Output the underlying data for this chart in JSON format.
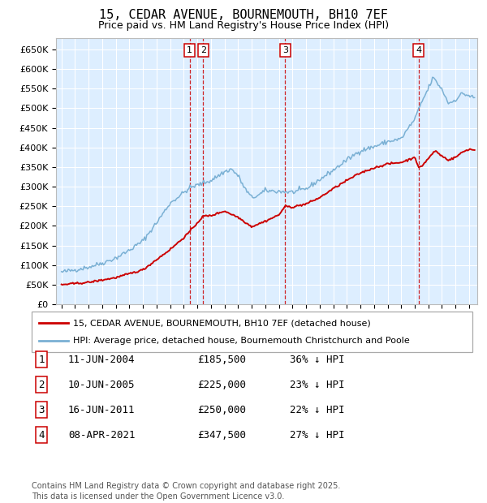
{
  "title": "15, CEDAR AVENUE, BOURNEMOUTH, BH10 7EF",
  "subtitle": "Price paid vs. HM Land Registry's House Price Index (HPI)",
  "ylabel_ticks": [
    "£0",
    "£50K",
    "£100K",
    "£150K",
    "£200K",
    "£250K",
    "£300K",
    "£350K",
    "£400K",
    "£450K",
    "£500K",
    "£550K",
    "£600K",
    "£650K"
  ],
  "ytick_vals": [
    0,
    50000,
    100000,
    150000,
    200000,
    250000,
    300000,
    350000,
    400000,
    450000,
    500000,
    550000,
    600000,
    650000
  ],
  "ylim": [
    0,
    680000
  ],
  "xlim_start": 1994.6,
  "xlim_end": 2025.6,
  "legend_line1": "15, CEDAR AVENUE, BOURNEMOUTH, BH10 7EF (detached house)",
  "legend_line2": "HPI: Average price, detached house, Bournemouth Christchurch and Poole",
  "sale_color": "#cc0000",
  "hpi_color": "#7ab0d4",
  "background_color": "#ddeeff",
  "grid_color": "#ffffff",
  "transactions": [
    {
      "date_dec": 2004.44,
      "label": "1"
    },
    {
      "date_dec": 2005.44,
      "label": "2"
    },
    {
      "date_dec": 2011.46,
      "label": "3"
    },
    {
      "date_dec": 2021.27,
      "label": "4"
    }
  ],
  "table_rows": [
    {
      "num": "1",
      "date": "11-JUN-2004",
      "price": "£185,500",
      "hpi": "36% ↓ HPI"
    },
    {
      "num": "2",
      "date": "10-JUN-2005",
      "price": "£225,000",
      "hpi": "23% ↓ HPI"
    },
    {
      "num": "3",
      "date": "16-JUN-2011",
      "price": "£250,000",
      "hpi": "22% ↓ HPI"
    },
    {
      "num": "4",
      "date": "08-APR-2021",
      "price": "£347,500",
      "hpi": "27% ↓ HPI"
    }
  ],
  "footer": "Contains HM Land Registry data © Crown copyright and database right 2025.\nThis data is licensed under the Open Government Licence v3.0.",
  "hpi_anchors": [
    [
      1995.0,
      82000
    ],
    [
      1996.0,
      88000
    ],
    [
      1997.0,
      95000
    ],
    [
      1998.0,
      105000
    ],
    [
      1999.0,
      118000
    ],
    [
      2000.0,
      138000
    ],
    [
      2001.0,
      162000
    ],
    [
      2002.0,
      208000
    ],
    [
      2003.0,
      258000
    ],
    [
      2004.0,
      285000
    ],
    [
      2004.5,
      298000
    ],
    [
      2005.0,
      304000
    ],
    [
      2006.0,
      316000
    ],
    [
      2007.0,
      338000
    ],
    [
      2007.5,
      345000
    ],
    [
      2008.0,
      328000
    ],
    [
      2008.5,
      295000
    ],
    [
      2009.0,
      272000
    ],
    [
      2009.5,
      278000
    ],
    [
      2010.0,
      290000
    ],
    [
      2011.0,
      288000
    ],
    [
      2012.0,
      286000
    ],
    [
      2013.0,
      294000
    ],
    [
      2014.0,
      318000
    ],
    [
      2015.0,
      342000
    ],
    [
      2016.0,
      368000
    ],
    [
      2017.0,
      392000
    ],
    [
      2018.0,
      402000
    ],
    [
      2019.0,
      415000
    ],
    [
      2020.0,
      422000
    ],
    [
      2020.5,
      448000
    ],
    [
      2021.0,
      472000
    ],
    [
      2021.5,
      515000
    ],
    [
      2022.0,
      550000
    ],
    [
      2022.33,
      578000
    ],
    [
      2022.5,
      572000
    ],
    [
      2023.0,
      548000
    ],
    [
      2023.5,
      512000
    ],
    [
      2024.0,
      522000
    ],
    [
      2024.5,
      538000
    ],
    [
      2025.0,
      532000
    ],
    [
      2025.4,
      526000
    ]
  ],
  "sale_anchors": [
    [
      1995.0,
      50000
    ],
    [
      1997.0,
      56000
    ],
    [
      1999.0,
      68000
    ],
    [
      2001.0,
      88000
    ],
    [
      2003.0,
      140000
    ],
    [
      2004.0,
      170000
    ],
    [
      2004.44,
      185500
    ],
    [
      2005.0,
      208000
    ],
    [
      2005.44,
      225000
    ],
    [
      2006.0,
      226000
    ],
    [
      2007.0,
      238000
    ],
    [
      2008.0,
      222000
    ],
    [
      2009.0,
      198000
    ],
    [
      2010.0,
      212000
    ],
    [
      2011.0,
      228000
    ],
    [
      2011.46,
      250000
    ],
    [
      2012.0,
      248000
    ],
    [
      2013.0,
      256000
    ],
    [
      2014.0,
      272000
    ],
    [
      2015.0,
      295000
    ],
    [
      2016.0,
      316000
    ],
    [
      2017.0,
      335000
    ],
    [
      2018.0,
      348000
    ],
    [
      2019.0,
      358000
    ],
    [
      2020.0,
      362000
    ],
    [
      2020.8,
      372000
    ],
    [
      2021.0,
      378000
    ],
    [
      2021.27,
      347500
    ],
    [
      2021.5,
      352000
    ],
    [
      2022.0,
      372000
    ],
    [
      2022.5,
      392000
    ],
    [
      2023.0,
      378000
    ],
    [
      2023.5,
      368000
    ],
    [
      2024.0,
      375000
    ],
    [
      2024.5,
      388000
    ],
    [
      2025.0,
      396000
    ],
    [
      2025.4,
      393000
    ]
  ]
}
